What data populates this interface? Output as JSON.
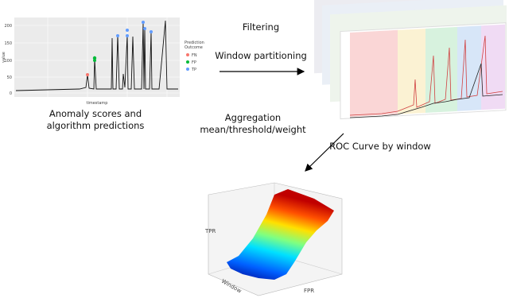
{
  "captions": {
    "left": [
      "Anomaly scores and",
      "algorithm predictions"
    ],
    "filtering": [
      "Filtering",
      "Window partitioning"
    ],
    "aggregation": [
      "Aggregation",
      "mean/threshold/weight"
    ],
    "roc": "ROC Curve by window"
  },
  "plot": {
    "y_label": "value",
    "x_label": "timestamp",
    "yticks": [
      "200",
      "150",
      "100",
      "50",
      "0"
    ],
    "legend_title": [
      "Prediction",
      "Outcome"
    ],
    "legend": [
      "FN",
      "FP",
      "TP"
    ]
  },
  "surface": {
    "z_label": "TPR",
    "x_label": "FPR",
    "y_label": "Window"
  }
}
